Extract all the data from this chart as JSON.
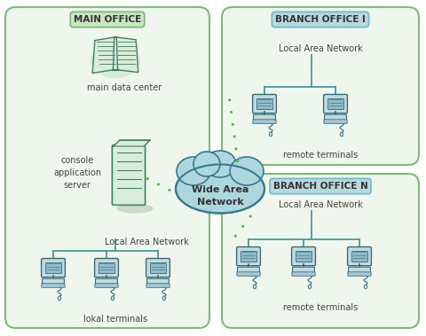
{
  "bg_color": "#ffffff",
  "main_office_fc": "#eef6ee",
  "main_office_ec": "#7fba7a",
  "main_office_label": "MAIN OFFICE",
  "main_office_label_fc": "#c8e6c0",
  "main_office_label_ec": "#7fba7a",
  "branch1_fc": "#eef6ee",
  "branch1_ec": "#7fba7a",
  "branch1_label": "BRANCH OFFICE I",
  "branch1_label_fc": "#b8d8e0",
  "branch1_label_ec": "#7ab8c8",
  "branchN_fc": "#eef6ee",
  "branchN_ec": "#7fba7a",
  "branchN_label": "BRANCH OFFICE N",
  "branchN_label_fc": "#b8d8e0",
  "branchN_label_ec": "#7ab8c8",
  "wan_label": "Wide Area\nNetwork",
  "wan_fc": "#aed6df",
  "wan_ec": "#3a7a8a",
  "server_fc": "#d8eed8",
  "server_ec": "#4a7a6a",
  "book_fc": "#d8eed8",
  "book_ec": "#4a7a6a",
  "computer_fc": "#c0dce0",
  "computer_ec": "#3a6a78",
  "dot_color": "#55bb44",
  "lan_color": "#4a9999",
  "text_color": "#444444",
  "main_server_label": "console\napplication\nserver",
  "main_data_label": "main data center",
  "lan_label": "Local Area Network",
  "lokal_label": "lokal terminals",
  "remote_label": "remote terminals"
}
